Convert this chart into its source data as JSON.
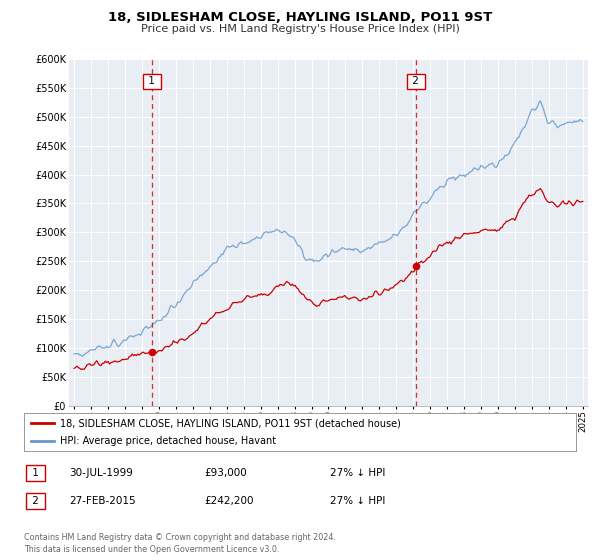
{
  "title": "18, SIDLESHAM CLOSE, HAYLING ISLAND, PO11 9ST",
  "subtitle": "Price paid vs. HM Land Registry's House Price Index (HPI)",
  "legend_label_red": "18, SIDLESHAM CLOSE, HAYLING ISLAND, PO11 9ST (detached house)",
  "legend_label_blue": "HPI: Average price, detached house, Havant",
  "annotation1_date": "30-JUL-1999",
  "annotation1_price": "£93,000",
  "annotation1_hpi": "27% ↓ HPI",
  "annotation2_date": "27-FEB-2015",
  "annotation2_price": "£242,200",
  "annotation2_hpi": "27% ↓ HPI",
  "footer": "Contains HM Land Registry data © Crown copyright and database right 2024.\nThis data is licensed under the Open Government Licence v3.0.",
  "vline1_year": 1999.58,
  "vline2_year": 2015.15,
  "sale1_year": 1999.58,
  "sale1_value": 93000,
  "sale2_year": 2015.15,
  "sale2_value": 242200,
  "ylim": [
    0,
    600000
  ],
  "xlim_start": 1994.7,
  "xlim_end": 2025.3,
  "plot_bg_color": "#e8eef4",
  "red_color": "#cc0000",
  "blue_color": "#6699cc",
  "grid_color": "#ffffff",
  "vline_color": "#cc0000",
  "title_fontsize": 9.5,
  "subtitle_fontsize": 8.0
}
